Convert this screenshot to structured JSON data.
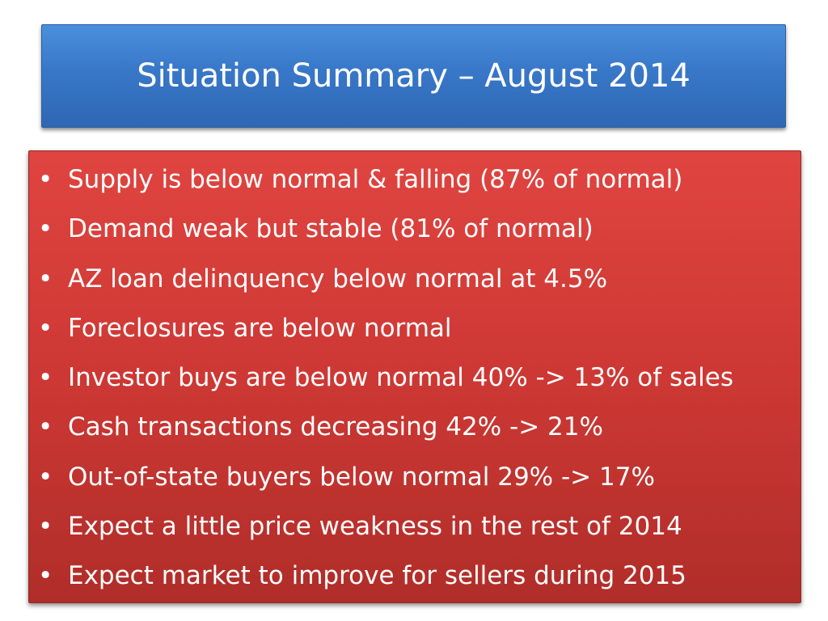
{
  "slide": {
    "title": "Situation Summary – August 2014",
    "bullets": [
      "Supply is below normal & falling (87% of normal)",
      "Demand weak but stable (81% of normal)",
      "AZ loan delinquency below normal at 4.5%",
      "Foreclosures are below normal",
      "Investor buys are below normal 40% -> 13% of sales",
      "Cash transactions decreasing 42% -> 21%",
      "Out-of-state buyers below normal 29% -> 17%",
      "Expect a little price weakness in the rest of 2014",
      "Expect market to improve for sellers during 2015"
    ],
    "bullet_glyph": "•"
  },
  "colors": {
    "title_fill": "#3877c8",
    "body_fill": "#cd3834",
    "text": "#ffffff"
  }
}
